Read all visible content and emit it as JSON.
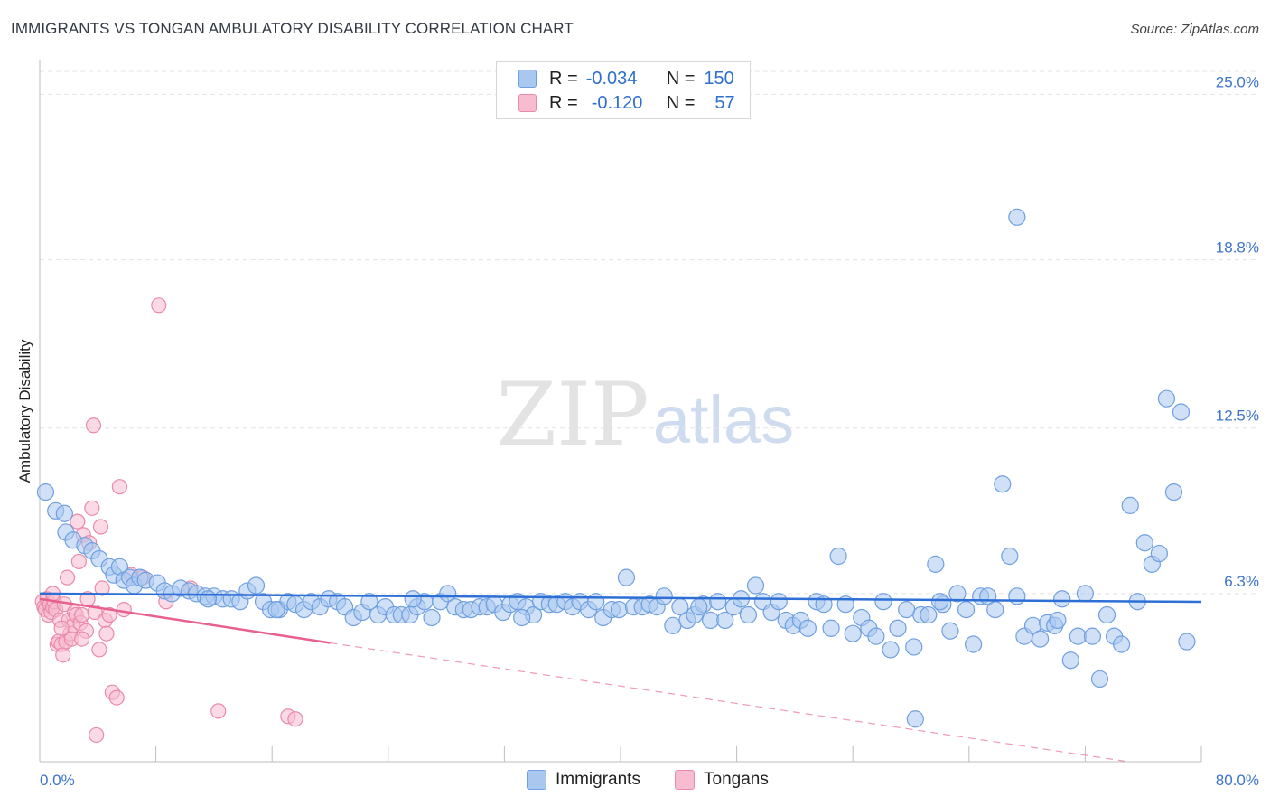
{
  "title": "IMMIGRANTS VS TONGAN AMBULATORY DISABILITY CORRELATION CHART",
  "source": "Source: ZipAtlas.com",
  "watermark": {
    "zip": "ZIP",
    "atlas": "atlas"
  },
  "legend": {
    "rows": [
      {
        "r_label": "R =",
        "r_value": "-0.034",
        "n_label": "N =",
        "n_value": "150",
        "color": "#a9c8f0",
        "border": "#6f9fe0"
      },
      {
        "r_label": "R =",
        "r_value": "-0.120",
        "n_label": "N =",
        "n_value": "57",
        "color": "#f7bcd0",
        "border": "#e98aaa"
      }
    ]
  },
  "bottom_legend": [
    {
      "label": "Immigrants",
      "color": "#a9c8f0",
      "border": "#6f9fe0"
    },
    {
      "label": "Tongans",
      "color": "#f7bcd0",
      "border": "#e98aaa"
    }
  ],
  "chart_data": {
    "type": "scatter",
    "title": "IMMIGRANTS VS TONGAN AMBULATORY DISABILITY CORRELATION CHART",
    "xlabel": "",
    "ylabel": "Ambulatory Disability",
    "xlim": [
      0,
      80
    ],
    "ylim": [
      0,
      26.3
    ],
    "x_tick_labels": [
      "0.0%",
      "80.0%"
    ],
    "y_ticks": [
      6.3,
      12.5,
      18.8,
      25.0
    ],
    "y_tick_labels": [
      "6.3%",
      "12.5%",
      "18.8%",
      "25.0%"
    ],
    "grid": true,
    "series": [
      {
        "name": "Immigrants",
        "color": "#6f9fe0",
        "fill": "#a9c8f0",
        "trend": {
          "x": [
            0,
            80
          ],
          "y": [
            6.3,
            5.99
          ]
        },
        "points": [
          [
            0.4,
            10.1
          ],
          [
            1.1,
            9.4
          ],
          [
            1.7,
            9.3
          ],
          [
            1.8,
            8.6
          ],
          [
            2.3,
            8.3
          ],
          [
            3.1,
            8.1
          ],
          [
            3.6,
            7.9
          ],
          [
            4.1,
            7.6
          ],
          [
            4.8,
            7.3
          ],
          [
            5.1,
            7.0
          ],
          [
            5.5,
            7.3
          ],
          [
            5.8,
            6.8
          ],
          [
            6.2,
            6.9
          ],
          [
            6.5,
            6.6
          ],
          [
            6.9,
            6.9
          ],
          [
            7.3,
            6.8
          ],
          [
            8.1,
            6.7
          ],
          [
            8.6,
            6.4
          ],
          [
            9.1,
            6.3
          ],
          [
            9.7,
            6.5
          ],
          [
            10.3,
            6.4
          ],
          [
            10.8,
            6.3
          ],
          [
            11.4,
            6.2
          ],
          [
            12.0,
            6.2
          ],
          [
            12.6,
            6.1
          ],
          [
            13.2,
            6.1
          ],
          [
            13.8,
            6.0
          ],
          [
            14.3,
            6.4
          ],
          [
            14.9,
            6.6
          ],
          [
            15.4,
            6.0
          ],
          [
            15.9,
            5.7
          ],
          [
            16.5,
            5.7
          ],
          [
            17.1,
            6.0
          ],
          [
            17.6,
            5.9
          ],
          [
            18.2,
            5.7
          ],
          [
            18.7,
            6.0
          ],
          [
            19.3,
            5.8
          ],
          [
            19.9,
            6.1
          ],
          [
            20.5,
            6.0
          ],
          [
            21.0,
            5.8
          ],
          [
            21.6,
            5.4
          ],
          [
            22.2,
            5.6
          ],
          [
            22.7,
            6.0
          ],
          [
            23.3,
            5.5
          ],
          [
            23.8,
            5.8
          ],
          [
            24.4,
            5.5
          ],
          [
            24.9,
            5.5
          ],
          [
            25.5,
            5.5
          ],
          [
            26.0,
            5.8
          ],
          [
            26.5,
            6.0
          ],
          [
            27.0,
            5.4
          ],
          [
            27.6,
            6.0
          ],
          [
            28.1,
            6.3
          ],
          [
            28.6,
            5.8
          ],
          [
            29.2,
            5.7
          ],
          [
            29.7,
            5.7
          ],
          [
            30.3,
            5.8
          ],
          [
            30.8,
            5.8
          ],
          [
            31.3,
            5.9
          ],
          [
            31.9,
            5.6
          ],
          [
            32.4,
            5.9
          ],
          [
            32.9,
            6.0
          ],
          [
            33.5,
            5.8
          ],
          [
            34.0,
            5.5
          ],
          [
            34.5,
            6.0
          ],
          [
            35.1,
            5.9
          ],
          [
            35.6,
            5.9
          ],
          [
            36.2,
            6.0
          ],
          [
            36.7,
            5.8
          ],
          [
            37.2,
            6.0
          ],
          [
            37.8,
            5.7
          ],
          [
            38.3,
            6.0
          ],
          [
            38.8,
            5.4
          ],
          [
            39.4,
            5.7
          ],
          [
            39.9,
            5.7
          ],
          [
            40.4,
            6.9
          ],
          [
            40.9,
            5.8
          ],
          [
            41.5,
            5.8
          ],
          [
            42.0,
            5.9
          ],
          [
            42.5,
            5.8
          ],
          [
            43.0,
            6.2
          ],
          [
            43.6,
            5.1
          ],
          [
            44.1,
            5.8
          ],
          [
            44.6,
            5.3
          ],
          [
            45.1,
            5.5
          ],
          [
            45.7,
            5.9
          ],
          [
            46.2,
            5.3
          ],
          [
            46.7,
            6.0
          ],
          [
            47.2,
            5.3
          ],
          [
            47.8,
            5.8
          ],
          [
            48.3,
            6.1
          ],
          [
            48.8,
            5.5
          ],
          [
            49.3,
            6.6
          ],
          [
            49.8,
            6.0
          ],
          [
            50.4,
            5.6
          ],
          [
            50.9,
            6.0
          ],
          [
            51.4,
            5.3
          ],
          [
            51.9,
            5.1
          ],
          [
            52.4,
            5.3
          ],
          [
            52.9,
            5.0
          ],
          [
            53.5,
            6.0
          ],
          [
            54.0,
            5.9
          ],
          [
            54.5,
            5.0
          ],
          [
            55.0,
            7.7
          ],
          [
            55.5,
            5.9
          ],
          [
            56.0,
            4.8
          ],
          [
            56.6,
            5.4
          ],
          [
            57.1,
            5.0
          ],
          [
            57.6,
            4.7
          ],
          [
            58.1,
            6.0
          ],
          [
            58.6,
            4.2
          ],
          [
            59.1,
            5.0
          ],
          [
            59.7,
            5.7
          ],
          [
            60.2,
            4.3
          ],
          [
            60.7,
            5.5
          ],
          [
            61.2,
            5.5
          ],
          [
            61.7,
            7.4
          ],
          [
            62.2,
            5.9
          ],
          [
            62.7,
            4.9
          ],
          [
            63.2,
            6.3
          ],
          [
            63.8,
            5.7
          ],
          [
            64.3,
            4.4
          ],
          [
            64.8,
            6.2
          ],
          [
            65.3,
            6.2
          ],
          [
            65.8,
            5.7
          ],
          [
            66.3,
            10.4
          ],
          [
            66.8,
            7.7
          ],
          [
            67.3,
            6.2
          ],
          [
            67.8,
            4.7
          ],
          [
            68.4,
            5.1
          ],
          [
            68.9,
            4.6
          ],
          [
            69.4,
            5.2
          ],
          [
            69.9,
            5.1
          ],
          [
            70.4,
            6.1
          ],
          [
            71.0,
            3.8
          ],
          [
            71.5,
            4.7
          ],
          [
            72.0,
            6.3
          ],
          [
            72.5,
            4.7
          ],
          [
            73.0,
            3.1
          ],
          [
            73.5,
            5.5
          ],
          [
            74.0,
            4.7
          ],
          [
            74.5,
            4.4
          ],
          [
            75.1,
            9.6
          ],
          [
            75.6,
            6.0
          ],
          [
            76.1,
            8.2
          ],
          [
            76.6,
            7.4
          ],
          [
            77.1,
            7.8
          ],
          [
            77.6,
            13.6
          ],
          [
            78.1,
            10.1
          ],
          [
            78.6,
            13.1
          ],
          [
            67.3,
            20.4
          ],
          [
            60.3,
            1.6
          ],
          [
            79.0,
            4.5
          ],
          [
            62.0,
            6.0
          ],
          [
            70.1,
            5.3
          ],
          [
            45.4,
            5.8
          ],
          [
            33.2,
            5.4
          ],
          [
            25.7,
            6.1
          ],
          [
            16.3,
            5.7
          ],
          [
            11.6,
            6.1
          ]
        ]
      },
      {
        "name": "Tongans",
        "color": "#e98aaa",
        "fill": "#f7bcd0",
        "trend": {
          "x": [
            0,
            20
          ],
          "y": [
            6.1,
            4.45
          ]
        },
        "trend_dashed": {
          "x": [
            20,
            75
          ],
          "y": [
            4.45,
            0
          ]
        },
        "points": [
          [
            0.2,
            6.0
          ],
          [
            0.3,
            5.8
          ],
          [
            0.4,
            5.7
          ],
          [
            0.5,
            6.1
          ],
          [
            0.6,
            5.5
          ],
          [
            0.7,
            5.9
          ],
          [
            0.8,
            5.6
          ],
          [
            0.9,
            5.8
          ],
          [
            1.0,
            6.0
          ],
          [
            1.1,
            5.7
          ],
          [
            1.2,
            4.4
          ],
          [
            1.3,
            4.5
          ],
          [
            1.4,
            5.3
          ],
          [
            1.5,
            4.4
          ],
          [
            1.6,
            4.0
          ],
          [
            1.7,
            5.9
          ],
          [
            1.8,
            4.5
          ],
          [
            1.9,
            6.9
          ],
          [
            2.0,
            5.3
          ],
          [
            2.1,
            4.8
          ],
          [
            2.2,
            4.6
          ],
          [
            2.3,
            5.1
          ],
          [
            2.4,
            5.6
          ],
          [
            2.5,
            5.5
          ],
          [
            2.6,
            9.0
          ],
          [
            2.7,
            7.5
          ],
          [
            2.8,
            5.2
          ],
          [
            2.9,
            5.5
          ],
          [
            3.0,
            8.5
          ],
          [
            3.2,
            4.9
          ],
          [
            3.3,
            6.1
          ],
          [
            3.4,
            8.2
          ],
          [
            3.6,
            9.5
          ],
          [
            3.7,
            12.6
          ],
          [
            3.8,
            5.6
          ],
          [
            3.9,
            1.0
          ],
          [
            4.1,
            4.2
          ],
          [
            4.2,
            8.8
          ],
          [
            4.3,
            6.5
          ],
          [
            4.5,
            5.3
          ],
          [
            4.6,
            4.8
          ],
          [
            4.8,
            5.5
          ],
          [
            5.0,
            2.6
          ],
          [
            5.3,
            2.4
          ],
          [
            5.5,
            10.3
          ],
          [
            5.8,
            5.7
          ],
          [
            6.3,
            7.0
          ],
          [
            7.1,
            6.9
          ],
          [
            8.2,
            17.1
          ],
          [
            8.7,
            6.0
          ],
          [
            10.4,
            6.5
          ],
          [
            12.3,
            1.9
          ],
          [
            17.1,
            1.7
          ],
          [
            17.6,
            1.6
          ],
          [
            0.9,
            6.3
          ],
          [
            1.5,
            5.0
          ],
          [
            2.9,
            4.6
          ]
        ]
      }
    ]
  }
}
